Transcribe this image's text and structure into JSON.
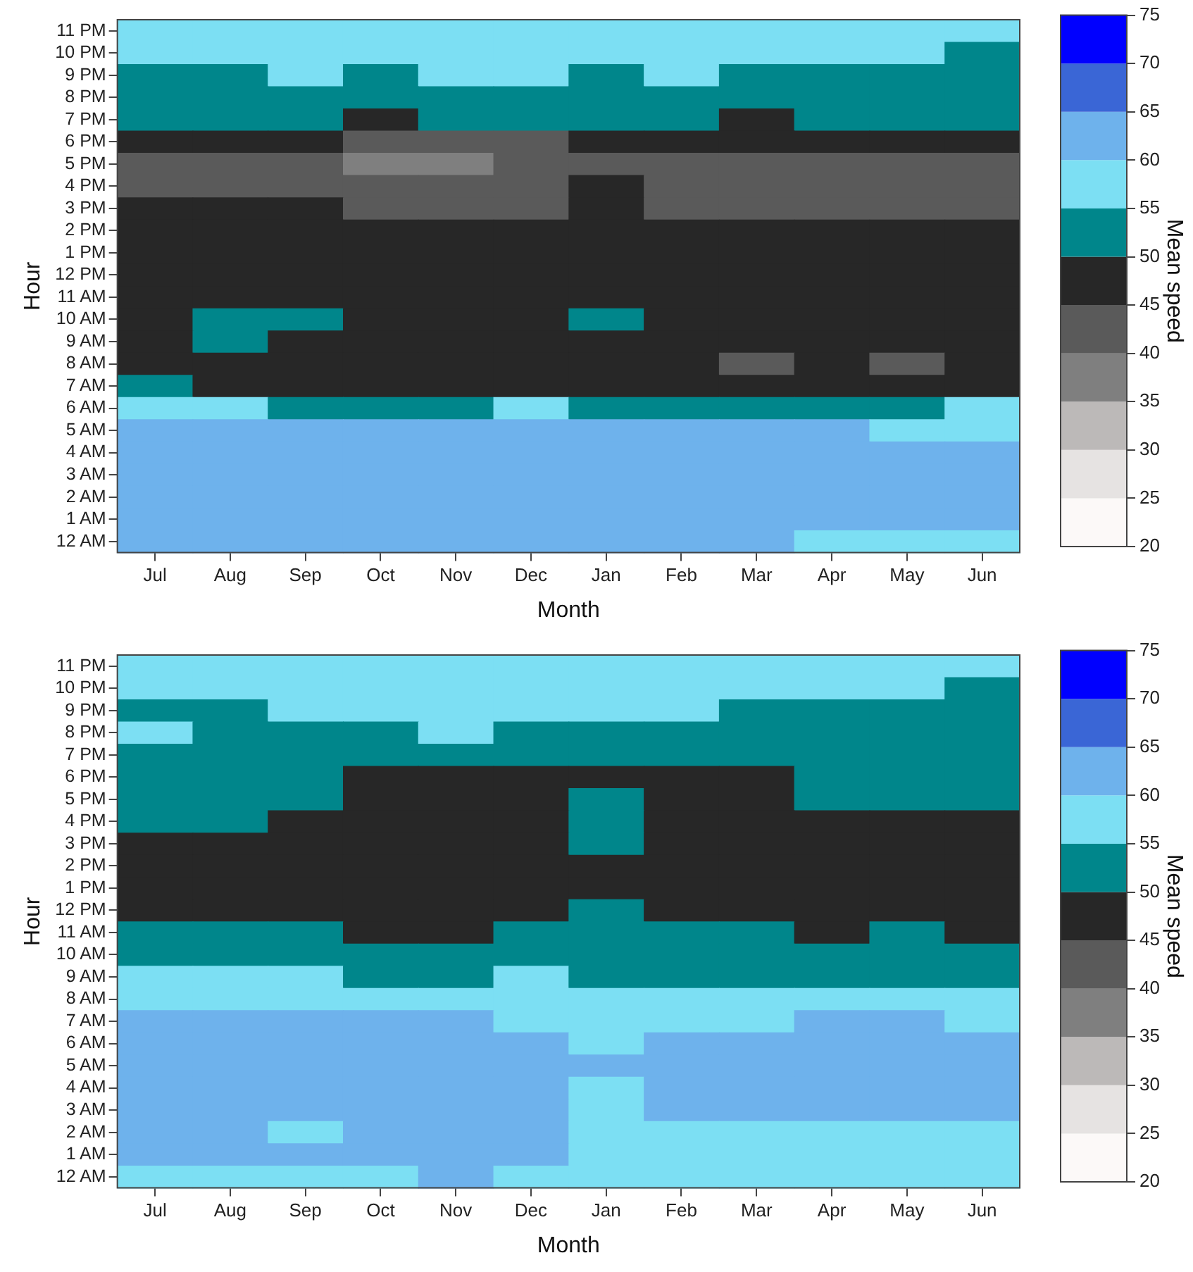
{
  "chart_data": [
    {
      "type": "heatmap",
      "xlabel": "Month",
      "ylabel": "Hour",
      "clabel": "Mean speed",
      "clim": [
        20,
        75
      ],
      "cticks": [
        20,
        25,
        30,
        35,
        40,
        45,
        50,
        55,
        60,
        65,
        70,
        75
      ],
      "categories": [
        "Jul",
        "Aug",
        "Sep",
        "Oct",
        "Nov",
        "Dec",
        "Jan",
        "Feb",
        "Mar",
        "Apr",
        "May",
        "Jun"
      ],
      "y_categories": [
        "11 PM",
        "10 PM",
        "9 PM",
        "8 PM",
        "7 PM",
        "6 PM",
        "5 PM",
        "4 PM",
        "3 PM",
        "2 PM",
        "1 PM",
        "12 PM",
        "11 AM",
        "10 AM",
        "9 AM",
        "8 AM",
        "7 AM",
        "6 AM",
        "5 AM",
        "4 AM",
        "3 AM",
        "2 AM",
        "1 AM",
        "12 AM"
      ],
      "cells": [
        [
          57.5,
          57.5,
          57.5,
          57.5,
          57.5,
          57.5,
          57.5,
          57.5,
          57.5,
          57.5,
          57.5,
          57.5
        ],
        [
          57.5,
          57.5,
          57.5,
          57.5,
          57.5,
          57.5,
          57.5,
          57.5,
          57.5,
          57.5,
          57.5,
          52.5
        ],
        [
          52.5,
          52.5,
          57.5,
          52.5,
          57.5,
          57.5,
          52.5,
          57.5,
          52.5,
          52.5,
          52.5,
          52.5
        ],
        [
          52.5,
          52.5,
          52.5,
          52.5,
          52.5,
          52.5,
          52.5,
          52.5,
          52.5,
          52.5,
          52.5,
          52.5
        ],
        [
          52.5,
          52.5,
          52.5,
          47.5,
          52.5,
          52.5,
          52.5,
          52.5,
          47.5,
          52.5,
          52.5,
          52.5
        ],
        [
          47.5,
          47.5,
          47.5,
          42.5,
          42.5,
          42.5,
          47.5,
          47.5,
          47.5,
          47.5,
          47.5,
          47.5
        ],
        [
          42.5,
          42.5,
          42.5,
          37.5,
          37.5,
          42.5,
          42.5,
          42.5,
          42.5,
          42.5,
          42.5,
          42.5
        ],
        [
          42.5,
          42.5,
          42.5,
          42.5,
          42.5,
          42.5,
          47.5,
          42.5,
          42.5,
          42.5,
          42.5,
          42.5
        ],
        [
          47.5,
          47.5,
          47.5,
          42.5,
          42.5,
          42.5,
          47.5,
          42.5,
          42.5,
          42.5,
          42.5,
          42.5
        ],
        [
          47.5,
          47.5,
          47.5,
          47.5,
          47.5,
          47.5,
          47.5,
          47.5,
          47.5,
          47.5,
          47.5,
          47.5
        ],
        [
          47.5,
          47.5,
          47.5,
          47.5,
          47.5,
          47.5,
          47.5,
          47.5,
          47.5,
          47.5,
          47.5,
          47.5
        ],
        [
          47.5,
          47.5,
          47.5,
          47.5,
          47.5,
          47.5,
          47.5,
          47.5,
          47.5,
          47.5,
          47.5,
          47.5
        ],
        [
          47.5,
          47.5,
          47.5,
          47.5,
          47.5,
          47.5,
          47.5,
          47.5,
          47.5,
          47.5,
          47.5,
          47.5
        ],
        [
          47.5,
          52.5,
          52.5,
          47.5,
          47.5,
          47.5,
          52.5,
          47.5,
          47.5,
          47.5,
          47.5,
          47.5
        ],
        [
          47.5,
          52.5,
          47.5,
          47.5,
          47.5,
          47.5,
          47.5,
          47.5,
          47.5,
          47.5,
          47.5,
          47.5
        ],
        [
          47.5,
          47.5,
          47.5,
          47.5,
          47.5,
          47.5,
          47.5,
          47.5,
          42.5,
          47.5,
          42.5,
          47.5
        ],
        [
          52.5,
          47.5,
          47.5,
          47.5,
          47.5,
          47.5,
          47.5,
          47.5,
          47.5,
          47.5,
          47.5,
          47.5
        ],
        [
          57.5,
          57.5,
          52.5,
          52.5,
          52.5,
          57.5,
          52.5,
          52.5,
          52.5,
          52.5,
          52.5,
          57.5
        ],
        [
          62.5,
          62.5,
          62.5,
          62.5,
          62.5,
          62.5,
          62.5,
          62.5,
          62.5,
          62.5,
          57.5,
          57.5
        ],
        [
          62.5,
          62.5,
          62.5,
          62.5,
          62.5,
          62.5,
          62.5,
          62.5,
          62.5,
          62.5,
          62.5,
          62.5
        ],
        [
          62.5,
          62.5,
          62.5,
          62.5,
          62.5,
          62.5,
          62.5,
          62.5,
          62.5,
          62.5,
          62.5,
          62.5
        ],
        [
          62.5,
          62.5,
          62.5,
          62.5,
          62.5,
          62.5,
          62.5,
          62.5,
          62.5,
          62.5,
          62.5,
          62.5
        ],
        [
          62.5,
          62.5,
          62.5,
          62.5,
          62.5,
          62.5,
          62.5,
          62.5,
          62.5,
          62.5,
          62.5,
          62.5
        ],
        [
          62.5,
          62.5,
          62.5,
          62.5,
          62.5,
          62.5,
          62.5,
          62.5,
          62.5,
          57.5,
          57.5,
          57.5
        ]
      ]
    },
    {
      "type": "heatmap",
      "xlabel": "Month",
      "ylabel": "Hour",
      "clabel": "Mean speed",
      "clim": [
        20,
        75
      ],
      "cticks": [
        20,
        25,
        30,
        35,
        40,
        45,
        50,
        55,
        60,
        65,
        70,
        75
      ],
      "categories": [
        "Jul",
        "Aug",
        "Sep",
        "Oct",
        "Nov",
        "Dec",
        "Jan",
        "Feb",
        "Mar",
        "Apr",
        "May",
        "Jun"
      ],
      "y_categories": [
        "11 PM",
        "10 PM",
        "9 PM",
        "8 PM",
        "7 PM",
        "6 PM",
        "5 PM",
        "4 PM",
        "3 PM",
        "2 PM",
        "1 PM",
        "12 PM",
        "11 AM",
        "10 AM",
        "9 AM",
        "8 AM",
        "7 AM",
        "6 AM",
        "5 AM",
        "4 AM",
        "3 AM",
        "2 AM",
        "1 AM",
        "12 AM"
      ],
      "cells": [
        [
          57.5,
          57.5,
          57.5,
          57.5,
          57.5,
          57.5,
          57.5,
          57.5,
          57.5,
          57.5,
          57.5,
          57.5
        ],
        [
          57.5,
          57.5,
          57.5,
          57.5,
          57.5,
          57.5,
          57.5,
          57.5,
          57.5,
          57.5,
          57.5,
          52.5
        ],
        [
          52.5,
          52.5,
          57.5,
          57.5,
          57.5,
          57.5,
          57.5,
          57.5,
          52.5,
          52.5,
          52.5,
          52.5
        ],
        [
          57.5,
          52.5,
          52.5,
          52.5,
          57.5,
          52.5,
          52.5,
          52.5,
          52.5,
          52.5,
          52.5,
          52.5
        ],
        [
          52.5,
          52.5,
          52.5,
          52.5,
          52.5,
          52.5,
          52.5,
          52.5,
          52.5,
          52.5,
          52.5,
          52.5
        ],
        [
          52.5,
          52.5,
          52.5,
          47.5,
          47.5,
          47.5,
          47.5,
          47.5,
          47.5,
          52.5,
          52.5,
          52.5
        ],
        [
          52.5,
          52.5,
          52.5,
          47.5,
          47.5,
          47.5,
          52.5,
          47.5,
          47.5,
          52.5,
          52.5,
          52.5
        ],
        [
          52.5,
          52.5,
          47.5,
          47.5,
          47.5,
          47.5,
          52.5,
          47.5,
          47.5,
          47.5,
          47.5,
          47.5
        ],
        [
          47.5,
          47.5,
          47.5,
          47.5,
          47.5,
          47.5,
          52.5,
          47.5,
          47.5,
          47.5,
          47.5,
          47.5
        ],
        [
          47.5,
          47.5,
          47.5,
          47.5,
          47.5,
          47.5,
          47.5,
          47.5,
          47.5,
          47.5,
          47.5,
          47.5
        ],
        [
          47.5,
          47.5,
          47.5,
          47.5,
          47.5,
          47.5,
          47.5,
          47.5,
          47.5,
          47.5,
          47.5,
          47.5
        ],
        [
          47.5,
          47.5,
          47.5,
          47.5,
          47.5,
          47.5,
          52.5,
          47.5,
          47.5,
          47.5,
          47.5,
          47.5
        ],
        [
          52.5,
          52.5,
          52.5,
          47.5,
          47.5,
          52.5,
          52.5,
          52.5,
          52.5,
          47.5,
          52.5,
          47.5
        ],
        [
          52.5,
          52.5,
          52.5,
          52.5,
          52.5,
          52.5,
          52.5,
          52.5,
          52.5,
          52.5,
          52.5,
          52.5
        ],
        [
          57.5,
          57.5,
          57.5,
          52.5,
          52.5,
          57.5,
          52.5,
          52.5,
          52.5,
          52.5,
          52.5,
          52.5
        ],
        [
          57.5,
          57.5,
          57.5,
          57.5,
          57.5,
          57.5,
          57.5,
          57.5,
          57.5,
          57.5,
          57.5,
          57.5
        ],
        [
          62.5,
          62.5,
          62.5,
          62.5,
          62.5,
          57.5,
          57.5,
          57.5,
          57.5,
          62.5,
          62.5,
          57.5
        ],
        [
          62.5,
          62.5,
          62.5,
          62.5,
          62.5,
          62.5,
          57.5,
          62.5,
          62.5,
          62.5,
          62.5,
          62.5
        ],
        [
          62.5,
          62.5,
          62.5,
          62.5,
          62.5,
          62.5,
          62.5,
          62.5,
          62.5,
          62.5,
          62.5,
          62.5
        ],
        [
          62.5,
          62.5,
          62.5,
          62.5,
          62.5,
          62.5,
          57.5,
          62.5,
          62.5,
          62.5,
          62.5,
          62.5
        ],
        [
          62.5,
          62.5,
          62.5,
          62.5,
          62.5,
          62.5,
          57.5,
          62.5,
          62.5,
          62.5,
          62.5,
          62.5
        ],
        [
          62.5,
          62.5,
          57.5,
          62.5,
          62.5,
          62.5,
          57.5,
          57.5,
          57.5,
          57.5,
          57.5,
          57.5
        ],
        [
          62.5,
          62.5,
          62.5,
          62.5,
          62.5,
          62.5,
          57.5,
          57.5,
          57.5,
          57.5,
          57.5,
          57.5
        ],
        [
          57.5,
          57.5,
          57.5,
          57.5,
          62.5,
          57.5,
          57.5,
          57.5,
          57.5,
          57.5,
          57.5,
          57.5
        ]
      ]
    }
  ]
}
